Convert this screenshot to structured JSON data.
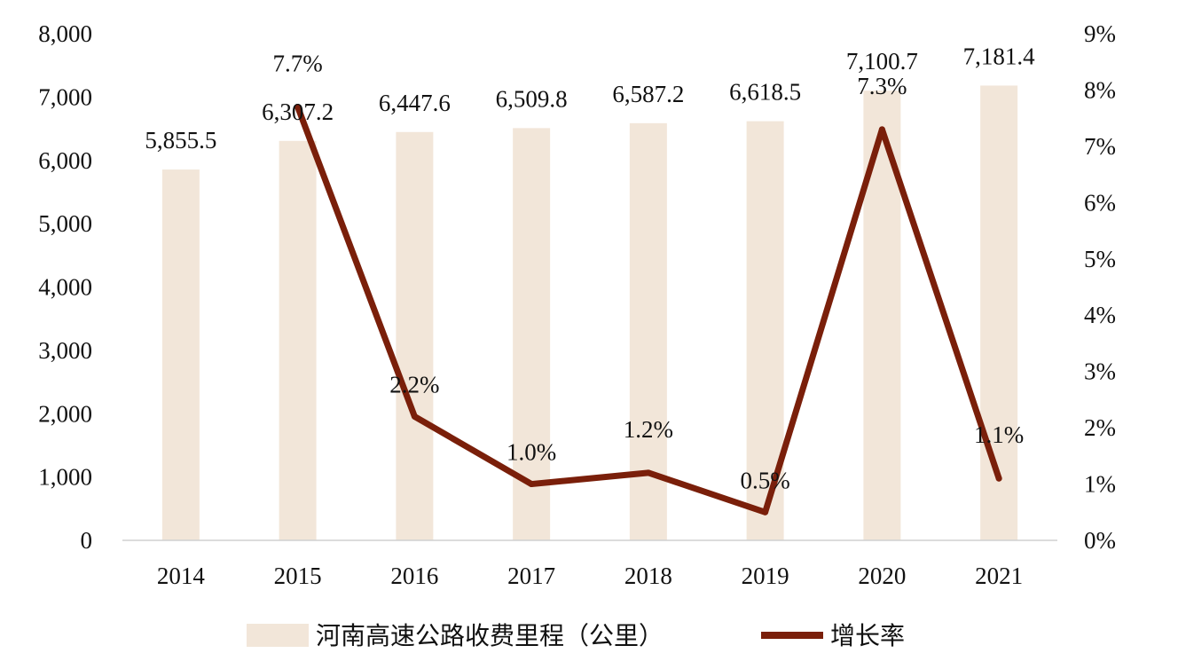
{
  "chart_data": {
    "type": "bar",
    "categories": [
      "2014",
      "2015",
      "2016",
      "2017",
      "2018",
      "2019",
      "2020",
      "2021"
    ],
    "series": [
      {
        "name": "河南高速公路收费里程（公里）",
        "type": "bar",
        "axis": "left",
        "color": "#f2e6d9",
        "values": [
          5855.5,
          6307.2,
          6447.6,
          6509.8,
          6587.2,
          6618.5,
          7100.7,
          7181.4
        ],
        "labels": [
          "5,855.5",
          "6,307.2",
          "6,447.6",
          "6,509.8",
          "6,587.2",
          "6,618.5",
          "7,100.7",
          "7,181.4"
        ]
      },
      {
        "name": "增长率",
        "type": "line",
        "axis": "right",
        "color": "#7a1f0a",
        "values": [
          null,
          7.7,
          2.2,
          1.0,
          1.2,
          0.5,
          7.3,
          1.1
        ],
        "labels": [
          "",
          "7.7%",
          "2.2%",
          "1.0%",
          "1.2%",
          "0.5%",
          "7.3%",
          "1.1%"
        ]
      }
    ],
    "y_left": {
      "ylim": [
        0,
        8000
      ],
      "ticks": [
        "0",
        "1,000",
        "2,000",
        "3,000",
        "4,000",
        "5,000",
        "6,000",
        "7,000",
        "8,000"
      ]
    },
    "y_right": {
      "ylim": [
        0,
        9
      ],
      "ticks": [
        "0%",
        "1%",
        "2%",
        "3%",
        "4%",
        "5%",
        "6%",
        "7%",
        "8%",
        "9%"
      ]
    },
    "grid": false,
    "legend": "bottom"
  }
}
